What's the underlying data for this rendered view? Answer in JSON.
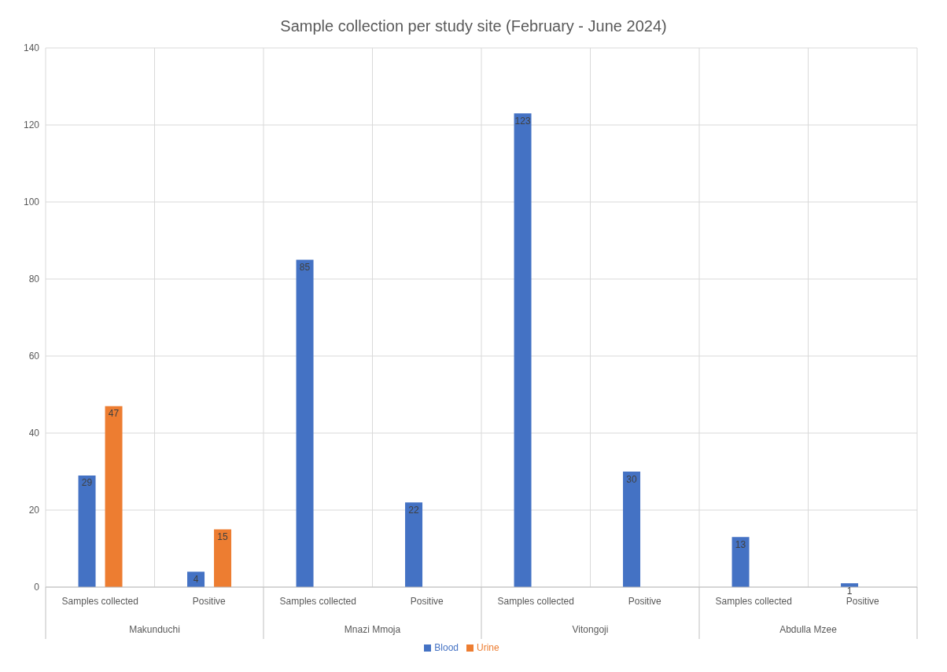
{
  "chart_data": {
    "type": "bar",
    "title": "Sample collection per study site (February - June 2024)",
    "categories": [
      "Samples collected",
      "Positive",
      "Samples collected",
      "Positive",
      "Samples collected",
      "Positive",
      "Samples collected",
      "Positive"
    ],
    "annotations": [
      "Makunduchi",
      "Mnazi Mmoja",
      "Vitongoji",
      "Abdulla Mzee"
    ],
    "series": [
      {
        "name": "Blood",
        "color": "#4472c4",
        "values": [
          29,
          4,
          85,
          22,
          123,
          30,
          13,
          1
        ]
      },
      {
        "name": "Urine",
        "color": "#ed7d31",
        "values": [
          47,
          15,
          null,
          null,
          null,
          null,
          null,
          null
        ]
      }
    ],
    "ylim": [
      0,
      140
    ],
    "yticks": [
      0,
      20,
      40,
      60,
      80,
      100,
      120,
      140
    ],
    "grid": true,
    "legend": "bottom",
    "data_labels": true
  }
}
